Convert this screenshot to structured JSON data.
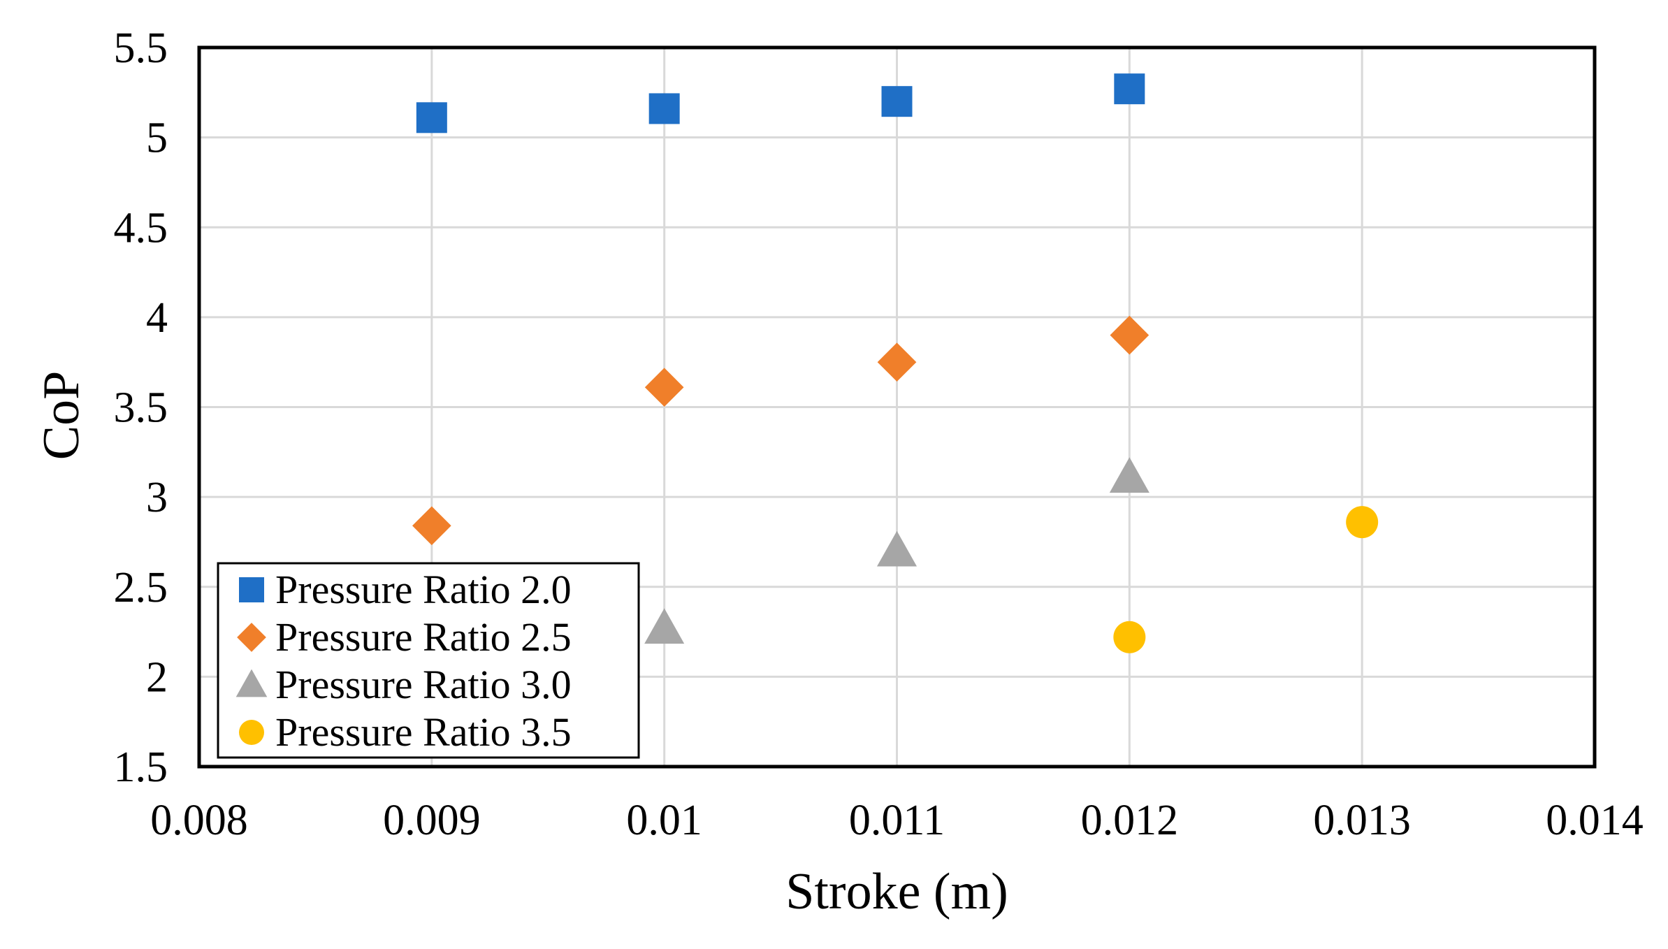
{
  "chart_data": {
    "type": "scatter",
    "title": "",
    "xlabel": "Stroke (m)",
    "ylabel": "CoP",
    "xlim": [
      0.008,
      0.014
    ],
    "ylim": [
      1.5,
      5.5
    ],
    "xticks": [
      0.008,
      0.009,
      0.01,
      0.011,
      0.012,
      0.013,
      0.014
    ],
    "xtick_labels": [
      "0.008",
      "0.009",
      "0.01",
      "0.011",
      "0.012",
      "0.013",
      "0.014"
    ],
    "yticks": [
      1.5,
      2,
      2.5,
      3,
      3.5,
      4,
      4.5,
      5,
      5.5
    ],
    "ytick_labels": [
      "1.5",
      "2",
      "2.5",
      "3",
      "3.5",
      "4",
      "4.5",
      "5",
      "5.5"
    ],
    "grid": true,
    "legend_position": "bottom-left",
    "series": [
      {
        "name": "Pressure Ratio 2.0",
        "marker": "square",
        "color": "#1F6FC6",
        "x": [
          0.009,
          0.01,
          0.011,
          0.012
        ],
        "y": [
          5.11,
          5.16,
          5.2,
          5.27
        ]
      },
      {
        "name": "Pressure Ratio 2.5",
        "marker": "diamond",
        "color": "#F07F2A",
        "x": [
          0.009,
          0.01,
          0.011,
          0.012
        ],
        "y": [
          2.84,
          3.61,
          3.75,
          3.9
        ]
      },
      {
        "name": "Pressure Ratio 3.0",
        "marker": "triangle",
        "color": "#A6A6A6",
        "x": [
          0.01,
          0.011,
          0.012
        ],
        "y": [
          2.27,
          2.7,
          3.11
        ]
      },
      {
        "name": "Pressure Ratio 3.5",
        "marker": "circle",
        "color": "#FFC000",
        "x": [
          0.012,
          0.013
        ],
        "y": [
          2.22,
          2.86
        ]
      }
    ]
  }
}
